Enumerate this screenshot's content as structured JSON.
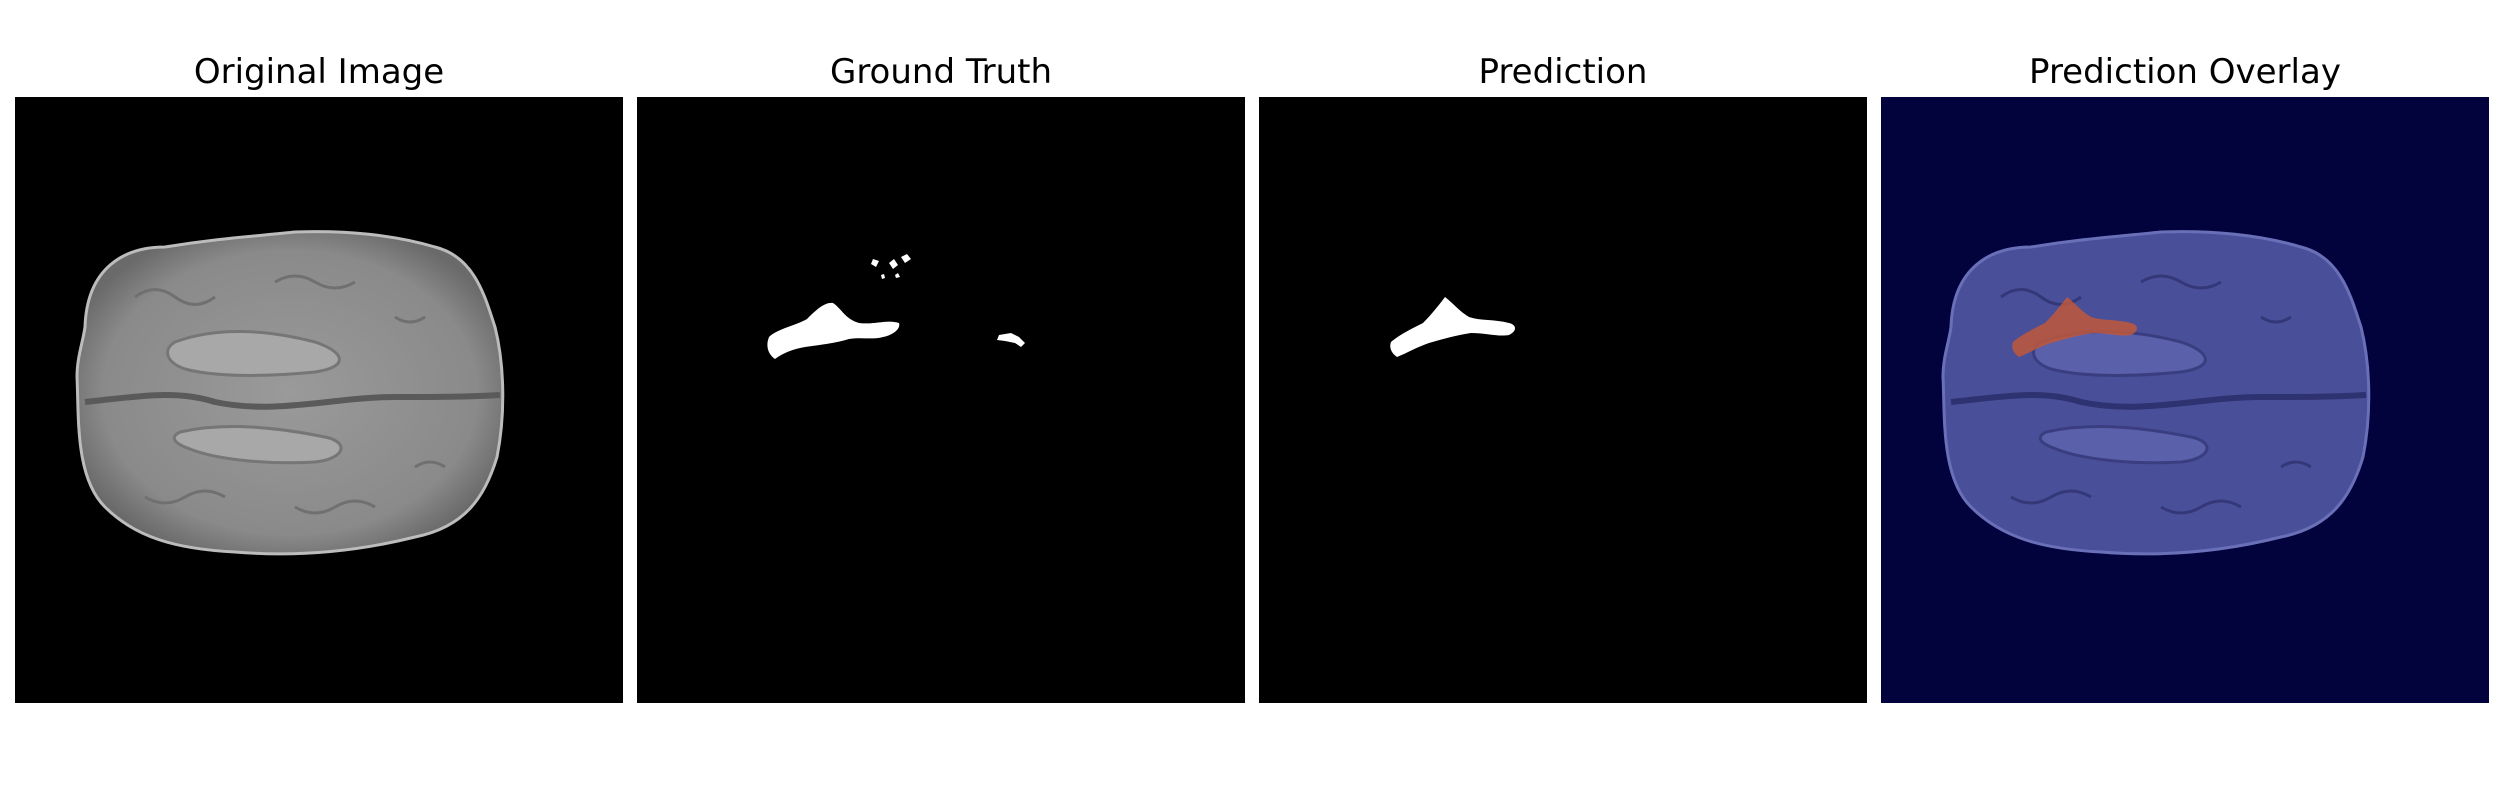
{
  "panels": [
    {
      "title": "Original Image",
      "background": "#000000"
    },
    {
      "title": "Ground Truth",
      "background": "#000000"
    },
    {
      "title": "Prediction",
      "background": "#000000"
    },
    {
      "title": "Prediction Overlay",
      "background": "#02023d"
    }
  ],
  "colors": {
    "brain_tissue": "#8a8a8a",
    "mask": "#ffffff",
    "overlay_tissue": "#4a4f9a",
    "overlay_prediction": "#c0573a"
  }
}
